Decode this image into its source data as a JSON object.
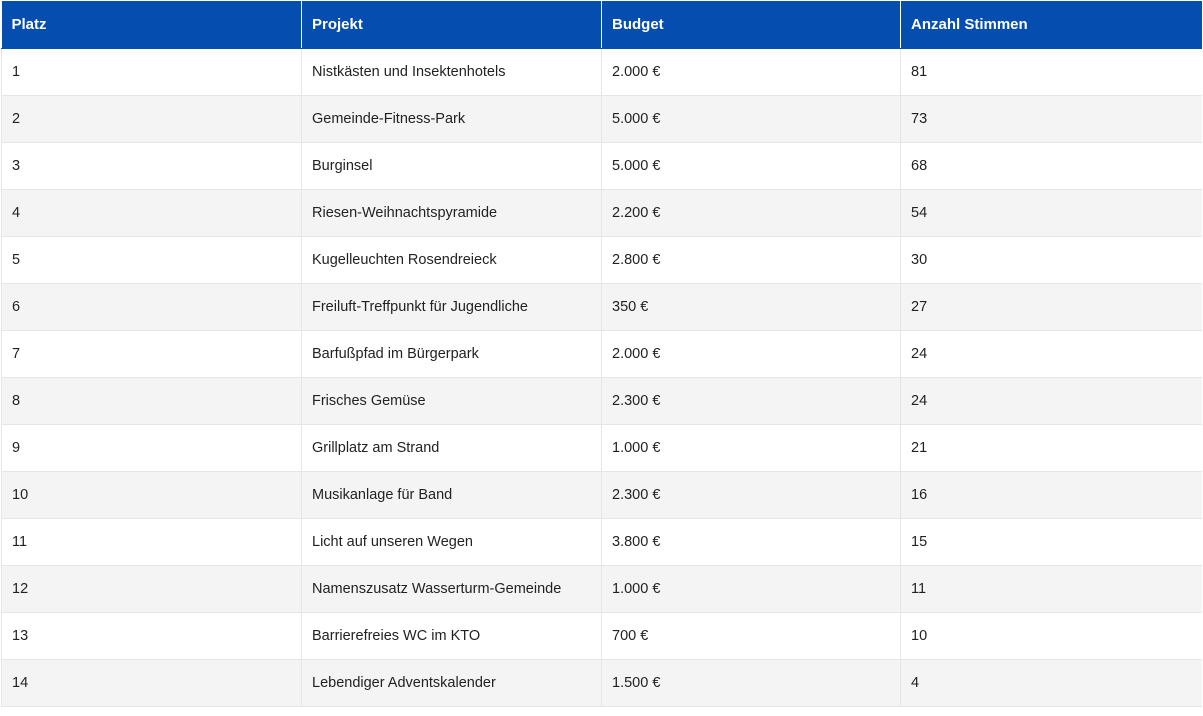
{
  "table": {
    "headers": [
      "Platz",
      "Projekt",
      "Budget",
      "Anzahl Stimmen"
    ],
    "header_bg": "#064db0",
    "rows": [
      [
        "1",
        "Nistkästen und Insektenhotels",
        "2.000 €",
        "81"
      ],
      [
        "2",
        "Gemeinde-Fitness-Park",
        "5.000 €",
        "73"
      ],
      [
        "3",
        "Burginsel",
        "5.000 €",
        "68"
      ],
      [
        "4",
        "Riesen-Weihnachtspyramide",
        "2.200 €",
        "54"
      ],
      [
        "5",
        "Kugelleuchten Rosendreieck",
        "2.800 €",
        "30"
      ],
      [
        "6",
        "Freiluft-Treffpunkt für Jugendliche",
        "350 €",
        "27"
      ],
      [
        "7",
        "Barfußpfad im Bürgerpark",
        "2.000 €",
        "24"
      ],
      [
        "8",
        "Frisches Gemüse",
        "2.300 €",
        "24"
      ],
      [
        "9",
        "Grillplatz am Strand",
        "1.000 €",
        "21"
      ],
      [
        "10",
        "Musikanlage für Band",
        "2.300 €",
        "16"
      ],
      [
        "11",
        "Licht auf unseren Wegen",
        "3.800 €",
        "15"
      ],
      [
        "12",
        "Namenszusatz Wasserturm-Gemeinde",
        "1.000 €",
        "11"
      ],
      [
        "13",
        "Barrierefreies WC im KTO",
        "700 €",
        "10"
      ],
      [
        "14",
        "Lebendiger Adventskalender",
        "1.500 €",
        "4"
      ]
    ]
  }
}
